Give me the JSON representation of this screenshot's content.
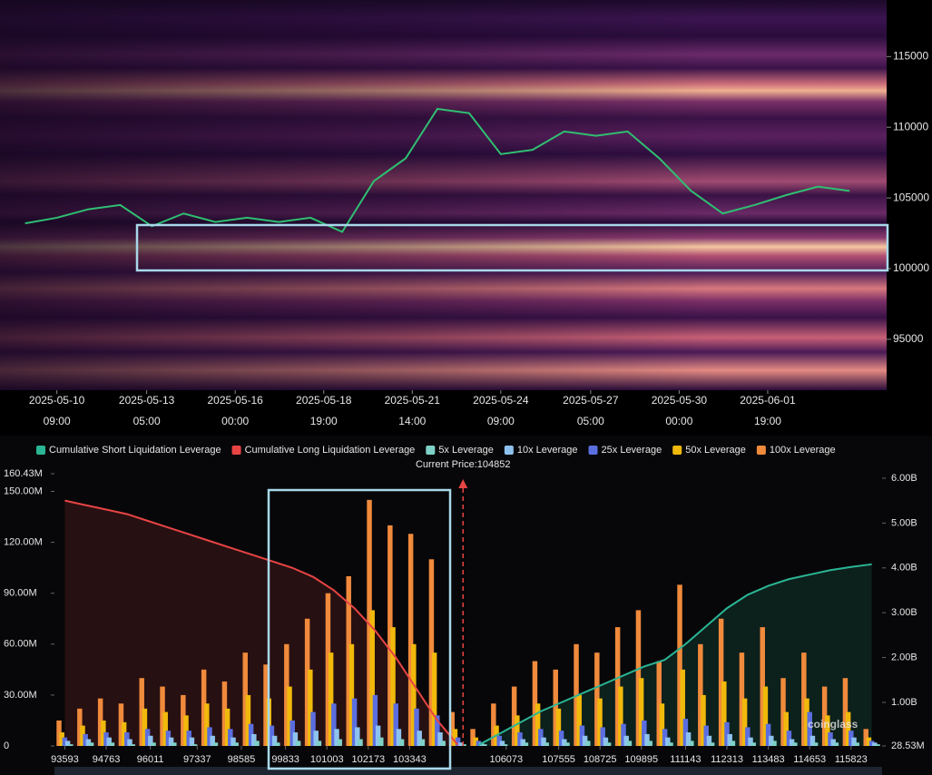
{
  "chart_data": [
    {
      "type": "line",
      "x": [
        "2025-05-09 09:00",
        "2025-05-10 09:00",
        "2025-05-11 09:00",
        "2025-05-12 09:00",
        "2025-05-13 09:00",
        "2025-05-14 09:00",
        "2025-05-15 09:00",
        "2025-05-16 09:00",
        "2025-05-17 09:00",
        "2025-05-18 09:00",
        "2025-05-19 09:00",
        "2025-05-20 09:00",
        "2025-05-21 09:00",
        "2025-05-22 09:00",
        "2025-05-23 09:00",
        "2025-05-24 09:00",
        "2025-05-25 09:00",
        "2025-05-26 09:00",
        "2025-05-27 09:00",
        "2025-05-28 09:00",
        "2025-05-29 09:00",
        "2025-05-30 09:00",
        "2025-05-31 09:00",
        "2025-06-01 09:00",
        "2025-06-02 09:00",
        "2025-06-03 09:00",
        "2025-06-04 09:00"
      ],
      "values": [
        103200,
        103600,
        104200,
        104500,
        103000,
        103900,
        103300,
        103600,
        103300,
        103600,
        102600,
        106200,
        107800,
        111300,
        111000,
        108100,
        108400,
        109700,
        109400,
        109700,
        107800,
        105500,
        103900,
        104500,
        105200,
        105800,
        105500
      ],
      "color": "#2fbf71",
      "xlim": [
        "2025-05-08 14:00",
        "2025-06-05 13:00"
      ],
      "xticks": [
        {
          "value": "2025-05-10 09:00",
          "label": [
            "2025-05-10",
            "09:00"
          ]
        },
        {
          "value": "2025-05-13 05:00",
          "label": [
            "2025-05-13",
            "05:00"
          ]
        },
        {
          "value": "2025-05-16 00:00",
          "label": [
            "2025-05-16",
            "00:00"
          ]
        },
        {
          "value": "2025-05-18 19:00",
          "label": [
            "2025-05-18",
            "19:00"
          ]
        },
        {
          "value": "2025-05-21 14:00",
          "label": [
            "2025-05-21",
            "14:00"
          ]
        },
        {
          "value": "2025-05-24 09:00",
          "label": [
            "2025-05-24",
            "09:00"
          ]
        },
        {
          "value": "2025-05-27 05:00",
          "label": [
            "2025-05-27",
            "05:00"
          ]
        },
        {
          "value": "2025-05-30 00:00",
          "label": [
            "2025-05-30",
            "00:00"
          ]
        },
        {
          "value": "2025-06-01 19:00",
          "label": [
            "2025-06-01",
            "19:00"
          ]
        }
      ],
      "ylim": [
        91400,
        119000
      ],
      "yticks": [
        95000,
        100000,
        105000,
        110000,
        115000
      ]
    },
    {
      "type": "bar",
      "annotation": "Current Price:104852",
      "current_price": 104852,
      "watermark": "coinglass",
      "x": [
        93593,
        94178,
        94763,
        95348,
        95933,
        96518,
        97103,
        97688,
        98273,
        98858,
        99443,
        100028,
        100613,
        101198,
        101783,
        102368,
        102953,
        103538,
        104123,
        104708,
        105293,
        105878,
        106463,
        107048,
        107633,
        108218,
        108803,
        109388,
        109973,
        110558,
        111143,
        111728,
        112313,
        112898,
        113483,
        114068,
        114653,
        115238,
        115823,
        116408
      ],
      "xlim": [
        93300,
        116700
      ],
      "xticks": [
        93593,
        94763,
        96011,
        97337,
        98585,
        99833,
        101003,
        102173,
        103343,
        106073,
        107555,
        108725,
        109895,
        111143,
        112313,
        113483,
        114653,
        115823
      ],
      "ylim": [
        0,
        160.43
      ],
      "yticks": [
        {
          "value": 0,
          "label": "0"
        },
        {
          "value": 30,
          "label": "30.00M"
        },
        {
          "value": 60,
          "label": "60.00M"
        },
        {
          "value": 90,
          "label": "90.00M"
        },
        {
          "value": 120,
          "label": "120.00M"
        },
        {
          "value": 150,
          "label": "150.00M"
        },
        {
          "value": 160.43,
          "label": "160.43M"
        }
      ],
      "y2lim": [
        0.02853,
        6.1
      ],
      "y2ticks": [
        {
          "value": 0.02853,
          "label": "28.53M"
        },
        {
          "value": 1,
          "label": "1.00B"
        },
        {
          "value": 2,
          "label": "2.00B"
        },
        {
          "value": 3,
          "label": "3.00B"
        },
        {
          "value": 4,
          "label": "4.00B"
        },
        {
          "value": 5,
          "label": "5.00B"
        },
        {
          "value": 6,
          "label": "6.00B"
        }
      ],
      "series": [
        {
          "name": "Cumulative Short Liquidation Leverage",
          "color": "#2bb594",
          "axis": "y2",
          "kind": "line",
          "values": [
            null,
            null,
            null,
            null,
            null,
            null,
            null,
            null,
            null,
            null,
            null,
            null,
            null,
            null,
            null,
            null,
            null,
            null,
            null,
            null,
            0.05,
            0.3,
            0.55,
            0.8,
            1.0,
            1.2,
            1.4,
            1.6,
            1.8,
            1.95,
            2.3,
            2.7,
            3.1,
            3.4,
            3.6,
            3.75,
            3.85,
            3.95,
            4.02,
            4.08
          ]
        },
        {
          "name": "Cumulative Long Liquidation Leverage",
          "color": "#e84444",
          "axis": "y2",
          "kind": "line",
          "values": [
            5.5,
            5.4,
            5.3,
            5.2,
            5.05,
            4.9,
            4.75,
            4.6,
            4.45,
            4.3,
            4.15,
            4.0,
            3.8,
            3.5,
            3.1,
            2.6,
            2.0,
            1.3,
            0.6,
            0.05,
            null,
            null,
            null,
            null,
            null,
            null,
            null,
            null,
            null,
            null,
            null,
            null,
            null,
            null,
            null,
            null,
            null,
            null,
            null,
            null
          ]
        },
        {
          "name": "5x Leverage",
          "color": "#7fd1c8",
          "kind": "bar",
          "values": [
            1,
            2,
            2,
            1,
            2,
            2,
            1,
            2,
            2,
            3,
            2,
            3,
            3,
            4,
            4,
            5,
            4,
            4,
            3,
            1,
            1,
            1,
            2,
            2,
            2,
            3,
            2,
            3,
            3,
            2,
            3,
            2,
            3,
            2,
            3,
            2,
            2,
            2,
            2,
            1
          ]
        },
        {
          "name": "10x Leverage",
          "color": "#8ec2ee",
          "kind": "bar",
          "values": [
            3,
            4,
            5,
            4,
            6,
            5,
            5,
            6,
            5,
            7,
            6,
            8,
            9,
            10,
            11,
            12,
            10,
            9,
            8,
            2,
            2,
            3,
            4,
            5,
            4,
            6,
            5,
            6,
            7,
            5,
            8,
            6,
            7,
            5,
            6,
            4,
            6,
            4,
            5,
            2
          ]
        },
        {
          "name": "25x Leverage",
          "color": "#5b6ee0",
          "kind": "bar",
          "values": [
            5,
            7,
            8,
            8,
            10,
            9,
            9,
            11,
            10,
            13,
            12,
            15,
            20,
            25,
            28,
            30,
            25,
            22,
            18,
            5,
            3,
            6,
            8,
            10,
            9,
            12,
            11,
            13,
            15,
            10,
            16,
            12,
            14,
            11,
            13,
            9,
            20,
            8,
            9,
            3
          ]
        },
        {
          "name": "50x Leverage",
          "color": "#f0b90b",
          "kind": "bar",
          "values": [
            8,
            12,
            15,
            14,
            22,
            20,
            18,
            25,
            22,
            30,
            28,
            35,
            45,
            55,
            60,
            80,
            70,
            60,
            55,
            10,
            5,
            12,
            18,
            25,
            22,
            30,
            28,
            35,
            40,
            25,
            45,
            30,
            38,
            28,
            35,
            20,
            28,
            18,
            20,
            5
          ]
        },
        {
          "name": "100x Leverage",
          "color": "#f08a3c",
          "kind": "bar",
          "values": [
            15,
            22,
            28,
            25,
            40,
            35,
            30,
            45,
            38,
            55,
            48,
            60,
            75,
            90,
            100,
            145,
            130,
            125,
            110,
            20,
            10,
            25,
            35,
            50,
            45,
            60,
            55,
            70,
            80,
            50,
            95,
            60,
            75,
            55,
            70,
            40,
            55,
            35,
            40,
            10
          ]
        }
      ]
    }
  ]
}
